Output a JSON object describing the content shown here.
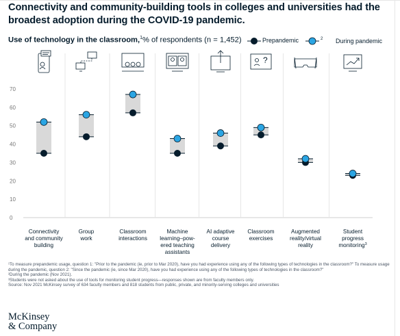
{
  "title": "Connectivity and community-building tools in colleges and universities had the broadest adoption during the COVID-19 pandemic.",
  "subtitle": {
    "bold_text": "Use of technology in the classroom,",
    "sup": "1",
    "rest": "% of respondents (n = 1,452)"
  },
  "legend": {
    "prepandemic": "Prepandemic",
    "during": "During pandemic",
    "during_sup": "2"
  },
  "colors": {
    "prepandemic": "#051c2c",
    "during": "#2ba5e3",
    "range": "#d9d9d9",
    "axis_text": "#757575",
    "grid": "#e6e6e6"
  },
  "icons": [
    "smartphone-chat-icon",
    "connected-screens-icon",
    "classroom-presentation-icon",
    "video-call-icon",
    "upload-screen-icon",
    "question-screen-icon",
    "vr-headset-icon",
    "progress-chart-icon"
  ],
  "chart_data": {
    "type": "range-dot",
    "ylim": [
      0,
      70
    ],
    "yticks": [
      0,
      10,
      20,
      30,
      40,
      50,
      60,
      70
    ],
    "categories": [
      {
        "lines": [
          "Connectivity",
          "and community",
          "building"
        ]
      },
      {
        "lines": [
          "Group",
          "work"
        ]
      },
      {
        "lines": [
          "Classroom",
          "interactions"
        ]
      },
      {
        "lines": [
          "Machine",
          "learning–pow-",
          "ered teaching",
          "assistants"
        ]
      },
      {
        "lines": [
          "AI adaptive",
          "course",
          "delivery"
        ]
      },
      {
        "lines": [
          "Classroom",
          "exercises"
        ]
      },
      {
        "lines": [
          "Augmented",
          "reality/virtual",
          "reality"
        ]
      },
      {
        "lines": [
          "Student",
          "progress",
          "monitoring"
        ],
        "sup": "3"
      }
    ],
    "series": [
      {
        "name": "Prepandemic",
        "values": [
          35,
          44,
          57,
          35,
          39,
          45,
          30,
          23
        ]
      },
      {
        "name": "During pandemic",
        "values": [
          52,
          56,
          67,
          43,
          46,
          49,
          32,
          24
        ]
      }
    ]
  },
  "footnotes": [
    "¹To measure prepandemic usage, question 1: \"Prior to the pandemic (ie, prior to Mar 2020), have you had experience using any of the following types of technologies in the classroom?\" To measure usage during the pandemic, question 2: \"Since the pandemic (ie, since Mar 2020), have you had experience using any of the following types of technologies in the classroom?\"",
    "²During the pandemic (Nov 2021).",
    "³Students were not asked about the use of tools for monitoring student progress—responses shown are from faculty members only.",
    "Source: Nov 2021 McKinsey survey of 634 faculty members and 818 students from public, private, and minority-serving colleges and universities"
  ],
  "logo": {
    "line1": "McKinsey",
    "line2": "& Company"
  }
}
